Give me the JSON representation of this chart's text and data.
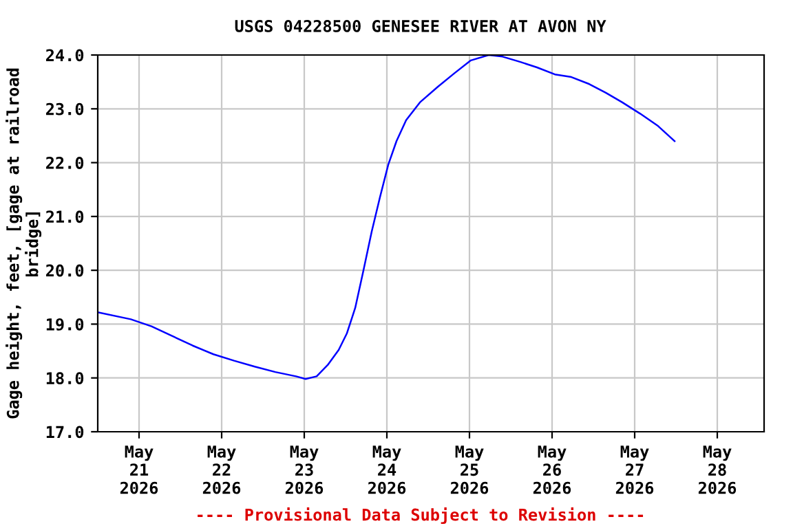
{
  "chart_data": {
    "type": "line",
    "title": "USGS 04228500 GENESEE RIVER AT AVON NY",
    "ylabel": "Gage height, feet, [gage at railroad\nbridge]",
    "annotations": [
      "---- Provisional Data Subject to Revision ----"
    ],
    "series": [
      {
        "color": "#0000ff",
        "x": [
          "2026-05-20T12:00",
          "2026-05-20T21:36",
          "2026-05-21T03:36",
          "2026-05-21T09:36",
          "2026-05-21T15:36",
          "2026-05-21T21:36",
          "2026-05-22T03:36",
          "2026-05-22T09:36",
          "2026-05-22T15:36",
          "2026-05-22T21:36",
          "2026-05-23T00:24",
          "2026-05-23T03:36",
          "2026-05-23T06:48",
          "2026-05-23T10:00",
          "2026-05-23T12:24",
          "2026-05-23T14:48",
          "2026-05-23T17:12",
          "2026-05-23T19:36",
          "2026-05-23T22:00",
          "2026-05-24T00:24",
          "2026-05-24T02:48",
          "2026-05-24T05:36",
          "2026-05-24T09:36",
          "2026-05-24T14:48",
          "2026-05-24T19:36",
          "2026-05-25T00:24",
          "2026-05-25T05:36",
          "2026-05-25T09:36",
          "2026-05-25T14:48",
          "2026-05-25T19:36",
          "2026-05-26T00:48",
          "2026-05-26T05:36",
          "2026-05-26T10:48",
          "2026-05-26T15:36",
          "2026-05-26T20:24",
          "2026-05-27T01:36",
          "2026-05-27T06:48",
          "2026-05-27T11:36"
        ],
        "values": [
          19.22,
          19.09,
          18.96,
          18.78,
          18.6,
          18.44,
          18.32,
          18.21,
          18.11,
          18.03,
          17.98,
          18.03,
          18.24,
          18.52,
          18.83,
          19.3,
          20.0,
          20.72,
          21.36,
          21.96,
          22.4,
          22.79,
          23.12,
          23.41,
          23.66,
          23.9,
          24.0,
          23.97,
          23.87,
          23.77,
          23.64,
          23.59,
          23.46,
          23.3,
          23.12,
          22.91,
          22.68,
          22.4
        ]
      }
    ],
    "xlim": [
      "2026-05-20T12:00",
      "2026-05-28T13:36"
    ],
    "xticks": [
      {
        "value": "2026-05-21",
        "label": "May\n21\n2026"
      },
      {
        "value": "2026-05-22",
        "label": "May\n22\n2026"
      },
      {
        "value": "2026-05-23",
        "label": "May\n23\n2026"
      },
      {
        "value": "2026-05-24",
        "label": "May\n24\n2026"
      },
      {
        "value": "2026-05-25",
        "label": "May\n25\n2026"
      },
      {
        "value": "2026-05-26",
        "label": "May\n26\n2026"
      },
      {
        "value": "2026-05-27",
        "label": "May\n27\n2026"
      },
      {
        "value": "2026-05-28",
        "label": "May\n28\n2026"
      }
    ],
    "ylim": [
      17,
      24
    ],
    "yticks": [
      {
        "value": 17,
        "label": "17.0"
      },
      {
        "value": 18,
        "label": "18.0"
      },
      {
        "value": 19,
        "label": "19.0"
      },
      {
        "value": 20,
        "label": "20.0"
      },
      {
        "value": 21,
        "label": "21.0"
      },
      {
        "value": 22,
        "label": "22.0"
      },
      {
        "value": 23,
        "label": "23.0"
      },
      {
        "value": 24,
        "label": "24.0"
      }
    ],
    "grid": true,
    "legend": false,
    "line_style": "solid",
    "marker": "none"
  }
}
